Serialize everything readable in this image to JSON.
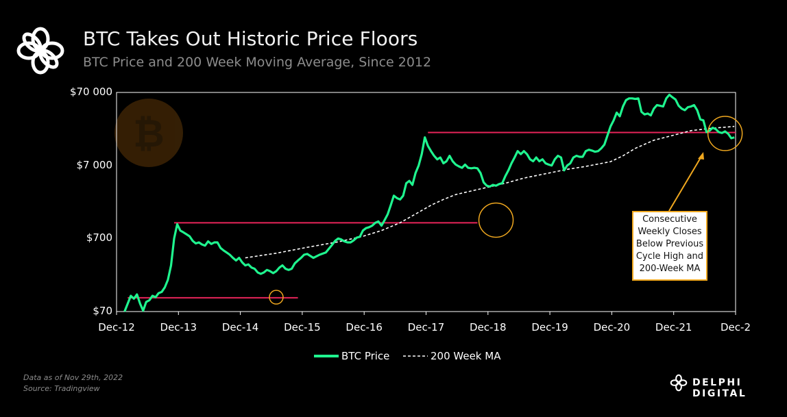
{
  "header": {
    "title": "BTC Takes Out Historic Price Floors",
    "subtitle": "BTC Price and 200 Week Moving Average, Since 2012"
  },
  "footer": {
    "note1": "Data as of Nov 29th, 2022",
    "note2": "Source: Tradingview",
    "brand": "DELPHI DIGITAL"
  },
  "annotation": {
    "lines": [
      "Consecutive",
      "Weekly Closes",
      "Below Previous",
      "Cycle High and",
      "200-Week MA"
    ]
  },
  "colors": {
    "price": "#1ff58f",
    "ma": "#ffffff",
    "floor_line": "#e8245a",
    "highlight": "#f0a81f",
    "background": "#000000"
  },
  "chart_data": {
    "type": "line",
    "scale": "log",
    "ylim": [
      70,
      70000
    ],
    "xlim": [
      2012.92,
      2022.92
    ],
    "y_ticks": [
      "$70",
      "$700",
      "$7 000",
      "$70 000"
    ],
    "y_tick_values": [
      70,
      700,
      7000,
      70000
    ],
    "x_ticks": [
      "Dec-12",
      "Dec-13",
      "Dec-14",
      "Dec-15",
      "Dec-16",
      "Dec-17",
      "Dec-18",
      "Dec-19",
      "Dec-20",
      "Dec-21",
      "Dec-2"
    ],
    "x_tick_values": [
      2012.92,
      2013.92,
      2014.92,
      2015.92,
      2016.92,
      2017.92,
      2018.92,
      2019.92,
      2020.92,
      2021.92,
      2022.92
    ],
    "legend": "bottom-center",
    "series": [
      {
        "name": "BTC Price",
        "x": [
          2013.05,
          2013.1,
          2013.15,
          2013.2,
          2013.25,
          2013.3,
          2013.35,
          2013.4,
          2013.45,
          2013.5,
          2013.55,
          2013.6,
          2013.65,
          2013.7,
          2013.75,
          2013.8,
          2013.85,
          2013.9,
          2013.95,
          2014.0,
          2014.05,
          2014.1,
          2014.15,
          2014.2,
          2014.25,
          2014.3,
          2014.35,
          2014.4,
          2014.45,
          2014.5,
          2014.55,
          2014.6,
          2014.65,
          2014.7,
          2014.75,
          2014.8,
          2014.85,
          2014.9,
          2014.95,
          2015.0,
          2015.05,
          2015.1,
          2015.15,
          2015.2,
          2015.25,
          2015.3,
          2015.35,
          2015.4,
          2015.45,
          2015.5,
          2015.55,
          2015.6,
          2015.65,
          2015.7,
          2015.75,
          2015.8,
          2015.85,
          2015.9,
          2015.95,
          2016.0,
          2016.1,
          2016.2,
          2016.3,
          2016.4,
          2016.45,
          2016.5,
          2016.55,
          2016.6,
          2016.65,
          2016.7,
          2016.75,
          2016.8,
          2016.85,
          2016.9,
          2016.95,
          2017.0,
          2017.05,
          2017.1,
          2017.15,
          2017.2,
          2017.25,
          2017.3,
          2017.35,
          2017.4,
          2017.45,
          2017.5,
          2017.55,
          2017.6,
          2017.65,
          2017.7,
          2017.75,
          2017.8,
          2017.85,
          2017.9,
          2017.95,
          2018.0,
          2018.05,
          2018.1,
          2018.15,
          2018.2,
          2018.25,
          2018.3,
          2018.35,
          2018.4,
          2018.45,
          2018.5,
          2018.55,
          2018.6,
          2018.65,
          2018.7,
          2018.75,
          2018.8,
          2018.85,
          2018.9,
          2018.95,
          2019.0,
          2019.05,
          2019.1,
          2019.15,
          2019.2,
          2019.25,
          2019.3,
          2019.35,
          2019.4,
          2019.45,
          2019.5,
          2019.55,
          2019.6,
          2019.65,
          2019.7,
          2019.75,
          2019.8,
          2019.85,
          2019.9,
          2019.95,
          2020.0,
          2020.05,
          2020.1,
          2020.15,
          2020.2,
          2020.25,
          2020.3,
          2020.35,
          2020.4,
          2020.45,
          2020.5,
          2020.55,
          2020.6,
          2020.65,
          2020.7,
          2020.75,
          2020.8,
          2020.85,
          2020.9,
          2020.95,
          2021.0,
          2021.05,
          2021.1,
          2021.15,
          2021.2,
          2021.25,
          2021.3,
          2021.35,
          2021.4,
          2021.45,
          2021.5,
          2021.55,
          2021.6,
          2021.65,
          2021.7,
          2021.75,
          2021.8,
          2021.85,
          2021.9,
          2021.95,
          2022.0,
          2022.05,
          2022.1,
          2022.15,
          2022.2,
          2022.25,
          2022.3,
          2022.35,
          2022.4,
          2022.45,
          2022.5,
          2022.55,
          2022.6,
          2022.65,
          2022.7,
          2022.75,
          2022.8,
          2022.85,
          2022.9
        ],
        "values": [
          70,
          90,
          115,
          105,
          120,
          90,
          72,
          95,
          100,
          115,
          110,
          125,
          130,
          150,
          190,
          300,
          700,
          1100,
          900,
          850,
          800,
          750,
          650,
          600,
          620,
          580,
          560,
          640,
          590,
          620,
          620,
          520,
          480,
          450,
          420,
          380,
          350,
          380,
          330,
          300,
          310,
          280,
          270,
          240,
          230,
          240,
          260,
          250,
          235,
          250,
          280,
          300,
          270,
          260,
          270,
          320,
          350,
          380,
          420,
          430,
          380,
          420,
          450,
          570,
          650,
          700,
          680,
          640,
          620,
          620,
          660,
          720,
          740,
          900,
          970,
          1000,
          1050,
          1150,
          1200,
          1050,
          1250,
          1500,
          2000,
          2700,
          2500,
          2400,
          2700,
          4000,
          4300,
          3800,
          5500,
          7000,
          10000,
          17000,
          13000,
          11000,
          9500,
          8500,
          9000,
          7500,
          8000,
          9500,
          8000,
          7200,
          6800,
          6500,
          7200,
          6500,
          6400,
          6500,
          6400,
          5500,
          4100,
          3700,
          3600,
          3800,
          3700,
          3900,
          4000,
          5000,
          6000,
          7500,
          9000,
          11000,
          10000,
          11000,
          10000,
          8500,
          8000,
          9000,
          8000,
          8500,
          7500,
          7200,
          7000,
          8500,
          9500,
          9000,
          6000,
          7000,
          7500,
          9000,
          9500,
          9200,
          9200,
          11000,
          11500,
          11200,
          10800,
          11000,
          12000,
          13500,
          18000,
          24000,
          29000,
          37000,
          33000,
          45000,
          55000,
          58000,
          58000,
          57000,
          58000,
          38000,
          35000,
          36000,
          34000,
          42000,
          47000,
          46000,
          45000,
          58000,
          65000,
          60000,
          56000,
          46000,
          42000,
          40000,
          44000,
          45000,
          47000,
          40000,
          30000,
          29000,
          20000,
          21000,
          23000,
          22000,
          20000,
          19500,
          20500,
          19000,
          16500,
          17000
        ]
      },
      {
        "name": "200 Week MA",
        "x": [
          2015.0,
          2015.5,
          2016.0,
          2016.5,
          2016.9,
          2017.2,
          2017.5,
          2017.8,
          2018.0,
          2018.2,
          2018.4,
          2018.7,
          2018.9,
          2019.2,
          2019.5,
          2019.9,
          2020.2,
          2020.5,
          2020.9,
          2021.1,
          2021.3,
          2021.6,
          2021.9,
          2022.2,
          2022.5,
          2022.9
        ],
        "values": [
          380,
          440,
          530,
          630,
          750,
          900,
          1150,
          1600,
          2000,
          2400,
          2800,
          3200,
          3500,
          4000,
          4700,
          5500,
          6200,
          6800,
          7900,
          9500,
          12000,
          15500,
          18000,
          21000,
          22500,
          24000
        ]
      }
    ],
    "floor_lines": [
      {
        "value": 1150,
        "x_range": [
          2013.85,
          2018.75
        ]
      },
      {
        "value": 108,
        "x_range": [
          2013.1,
          2015.85
        ]
      },
      {
        "value": 19800,
        "x_range": [
          2017.95,
          2022.92
        ]
      }
    ],
    "highlight_circles": [
      {
        "x": 2015.5,
        "value": 110
      },
      {
        "x": 2019.05,
        "value": 1250
      },
      {
        "x": 2022.75,
        "value": 19200
      }
    ]
  }
}
